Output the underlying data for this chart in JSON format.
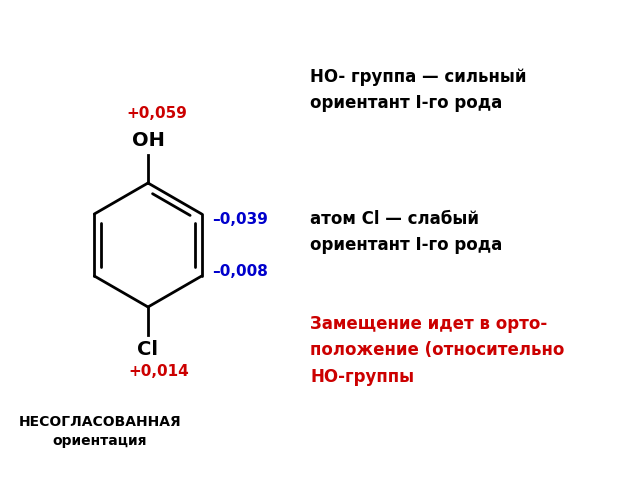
{
  "bg_color": "#ffffff",
  "ring_color": "#000000",
  "label_OH": "OH",
  "label_Cl": "Cl",
  "charge_top": "+0,059",
  "charge_top_color": "#cc0000",
  "charge_ortho": "–0,039",
  "charge_ortho_color": "#0000cc",
  "charge_meta": "–0,008",
  "charge_meta_color": "#0000cc",
  "charge_bottom": "+0,014",
  "charge_bottom_color": "#cc0000",
  "text1": "HO- группа — сильный\nориентант I-го рода",
  "text2": "атом Cl — слабый\nориентант I-го рода",
  "text3": "Замещение идет в орто-\nположение (относительно\nНО-группы",
  "text3_color": "#cc0000",
  "bottom_text": "НЕСОГЛАСОВАННАЯ\nориентация"
}
